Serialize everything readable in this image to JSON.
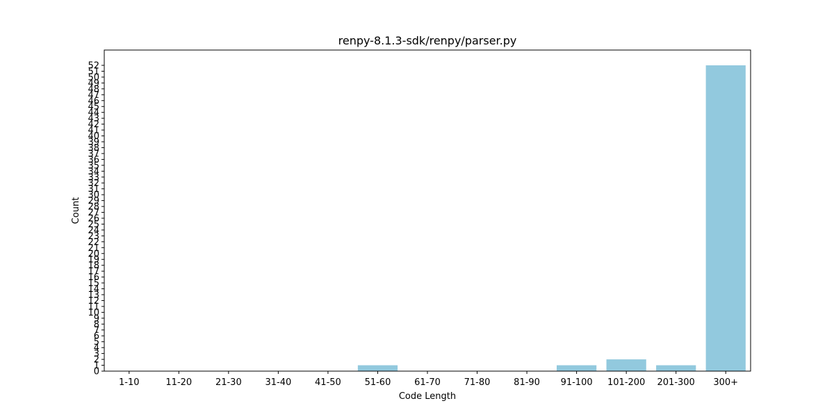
{
  "chart_data": {
    "type": "bar",
    "title": "renpy-8.1.3-sdk/renpy/parser.py",
    "xlabel": "Code Length",
    "ylabel": "Count",
    "categories": [
      "1-10",
      "11-20",
      "21-30",
      "31-40",
      "41-50",
      "51-60",
      "61-70",
      "71-80",
      "81-90",
      "91-100",
      "101-200",
      "201-300",
      "300+"
    ],
    "values": [
      0,
      0,
      0,
      0,
      0,
      1,
      0,
      0,
      0,
      1,
      2,
      1,
      52
    ],
    "ylim": [
      0,
      54.6
    ],
    "yticks": [
      0,
      1,
      2,
      3,
      4,
      5,
      6,
      7,
      8,
      9,
      10,
      11,
      12,
      13,
      14,
      15,
      16,
      17,
      18,
      19,
      20,
      21,
      22,
      23,
      24,
      25,
      26,
      27,
      28,
      29,
      30,
      31,
      32,
      33,
      34,
      35,
      36,
      37,
      38,
      39,
      40,
      41,
      42,
      43,
      44,
      45,
      46,
      47,
      48,
      49,
      50,
      51,
      52
    ],
    "bar_color": "#92c9de",
    "grid": false,
    "legend": "none"
  }
}
